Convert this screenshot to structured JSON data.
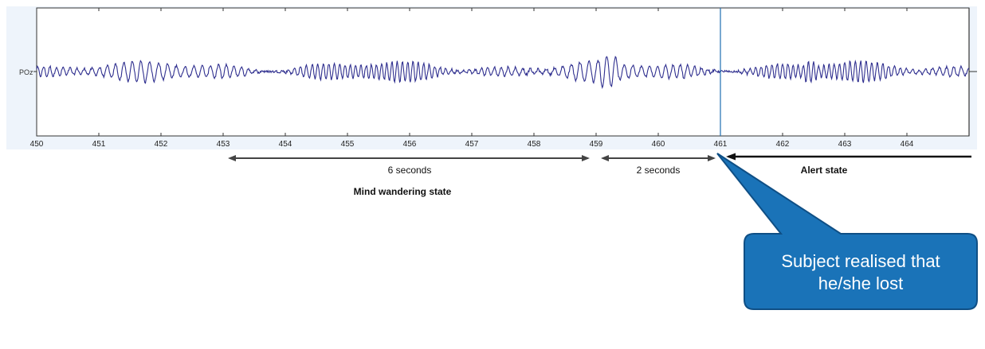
{
  "chart_data": {
    "type": "line",
    "title": "",
    "xlabel": "",
    "ylabel": "",
    "channel_label": "POz",
    "xlim": [
      450,
      465
    ],
    "x_ticks": [
      450,
      451,
      452,
      453,
      454,
      455,
      456,
      457,
      458,
      459,
      460,
      461,
      462,
      463,
      464
    ],
    "grid": false,
    "series": [
      {
        "name": "POz",
        "color": "#2f2f8f",
        "sample_rate_hz": 100,
        "x_start": 450,
        "x_end": 465,
        "description_of_values": "oscillatory EEG trace, roughly 10 Hz with varying amplitude"
      }
    ],
    "marker_line": {
      "x": 461,
      "color": "#1f6fb2"
    },
    "annotations": [
      {
        "label": "6 seconds",
        "x_start": 453,
        "x_end": 459,
        "type": "double-arrow"
      },
      {
        "label": "2 seconds",
        "x_start": 459,
        "x_end": 461,
        "type": "double-arrow"
      },
      {
        "label": "Alert state",
        "x_start": 461,
        "x_end": 465,
        "type": "left-arrow"
      },
      {
        "label": "Mind wandering state",
        "type": "state-label"
      }
    ],
    "callout": {
      "line1": "Subject realised that",
      "line2": "he/she lost",
      "fill": "#1a73b8",
      "border": "#0f4f85",
      "points_to_x": 461
    }
  }
}
